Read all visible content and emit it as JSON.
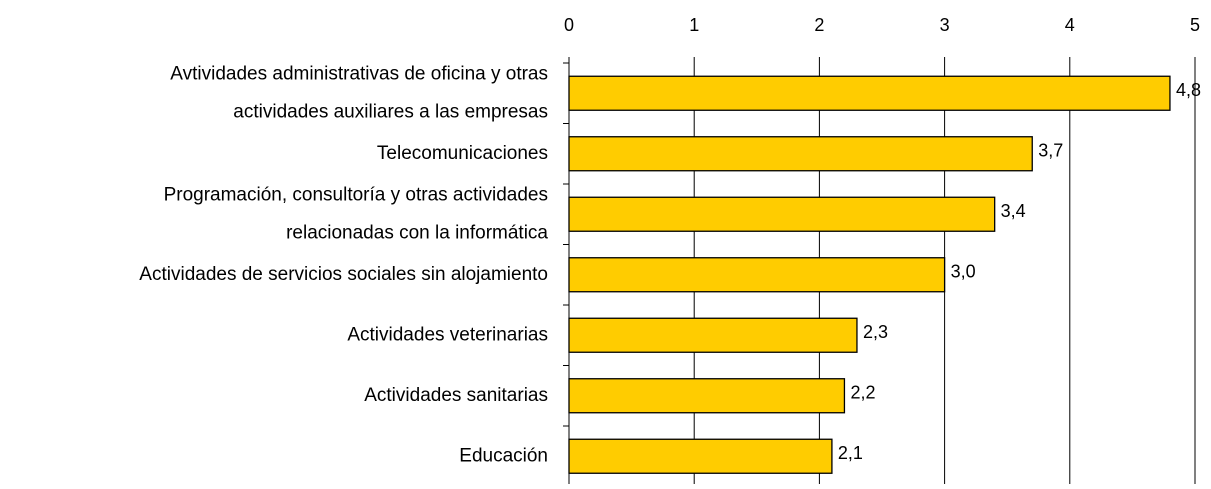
{
  "chart_data": {
    "type": "bar",
    "orientation": "horizontal",
    "categories": [
      [
        "Avtividades administrativas de oficina y otras",
        "actividades auxiliares a las empresas"
      ],
      [
        "Telecomunicaciones"
      ],
      [
        "Programación, consultoría y otras actividades",
        "relacionadas con la informática"
      ],
      [
        "Actividades de servicios sociales sin alojamiento"
      ],
      [
        "Actividades veterinarias"
      ],
      [
        "Actividades sanitarias"
      ],
      [
        "Educación"
      ]
    ],
    "values": [
      4.8,
      3.7,
      3.4,
      3.0,
      2.3,
      2.2,
      2.1
    ],
    "value_labels": [
      "4,8",
      "3,7",
      "3,4",
      "3,0",
      "2,3",
      "2,2",
      "2,1"
    ],
    "color": "#ffcc00",
    "xlim": [
      0,
      5
    ],
    "xticks": [
      0,
      1,
      2,
      3,
      4,
      5
    ],
    "grid": true
  }
}
